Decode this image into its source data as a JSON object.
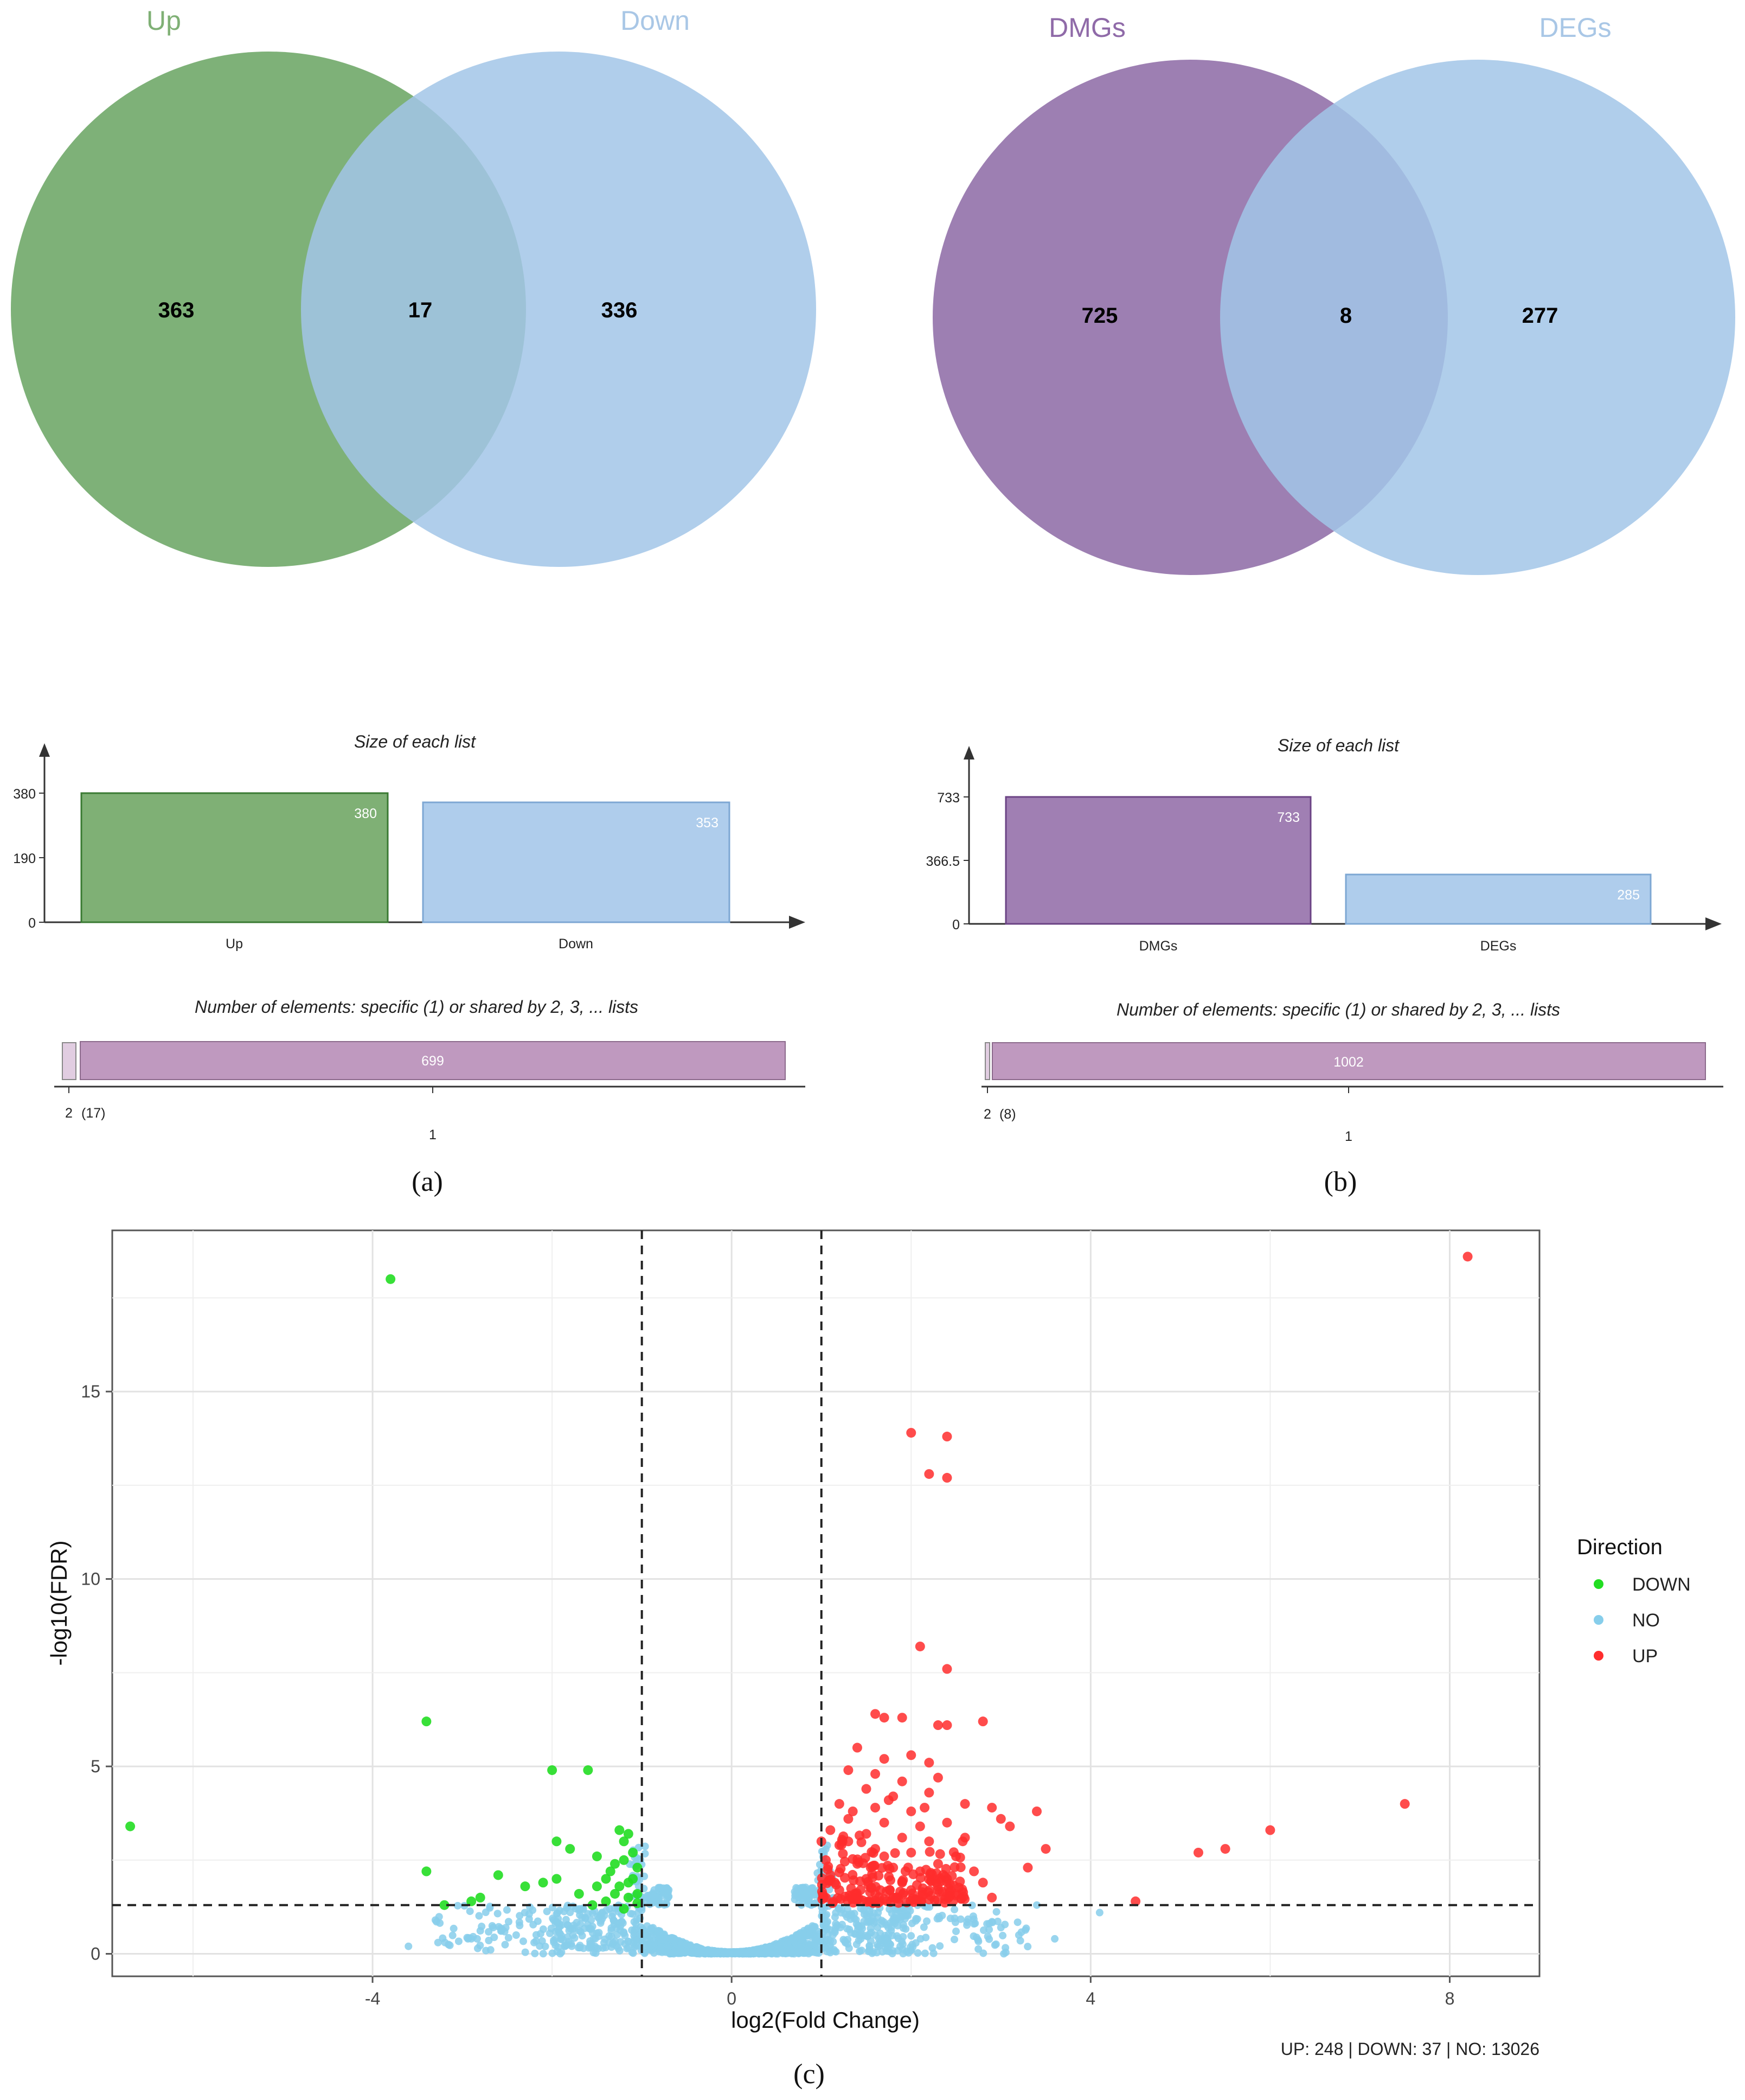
{
  "panel_a": {
    "caption": "(a)",
    "venn": {
      "set1": "Up",
      "set2": "Down",
      "only1": "363",
      "both": "17",
      "only2": "336"
    },
    "bar_title": "Size of each list",
    "bars": [
      {
        "label": "Up",
        "value": 380,
        "text": "380"
      },
      {
        "label": "Down",
        "value": 353,
        "text": "353"
      }
    ],
    "yticks": [
      "0",
      "190",
      "380"
    ],
    "yvals": [
      0,
      190,
      380
    ],
    "shared_title": "Number of elements: specific (1) or shared by 2, 3, ... lists",
    "shared_main_value": "699",
    "shared_small_label": "2",
    "shared_small_count": "(17)",
    "shared_main_label": "1"
  },
  "panel_b": {
    "caption": "(b)",
    "venn": {
      "set1": "DMGs",
      "set2": "DEGs",
      "only1": "725",
      "both": "8",
      "only2": "277"
    },
    "bar_title": "Size of each list",
    "bars": [
      {
        "label": "DMGs",
        "value": 733,
        "text": "733"
      },
      {
        "label": "DEGs",
        "value": 285,
        "text": "285"
      }
    ],
    "yticks": [
      "0",
      "366.5",
      "733"
    ],
    "yvals": [
      0,
      366.5,
      733
    ],
    "shared_title": "Number of elements: specific (1) or shared by 2, 3, ... lists",
    "shared_main_value": "1002",
    "shared_small_label": "2",
    "shared_small_count": "(8)",
    "shared_main_label": "1"
  },
  "colors": {
    "venn_green": "#5a9b52",
    "venn_blue": "#a2c5e8",
    "venn_purple": "#855f9f",
    "bar_green": "#7fb075",
    "bar_blue": "#afcdec",
    "bar_purple": "#a07fb3",
    "shared_bar": "#bf99bf",
    "down": "#22dd22",
    "no": "#87ceeb",
    "up": "#ff2d2d"
  },
  "chart_data": {
    "type": "scatter",
    "caption": "(c)",
    "xlabel": "log2(Fold Change)",
    "ylabel": "-log10(FDR)",
    "xlim": [
      -6.9,
      9.0
    ],
    "ylim": [
      -0.6,
      19.3
    ],
    "xticks": [
      -4,
      0,
      4,
      8
    ],
    "yticks": [
      0,
      5,
      10,
      15
    ],
    "vlines": [
      -1,
      1
    ],
    "hline": 1.3,
    "legend_title": "Direction",
    "legend": [
      "DOWN",
      "NO",
      "UP"
    ],
    "summary": "UP: 248 | DOWN: 37 | NO: 13026",
    "series": [
      {
        "name": "DOWN",
        "points": [
          [
            -6.7,
            3.4
          ],
          [
            -3.8,
            18.0
          ],
          [
            -3.4,
            6.2
          ],
          [
            -3.4,
            2.2
          ],
          [
            -3.2,
            1.3
          ],
          [
            -2.9,
            1.4
          ],
          [
            -2.8,
            1.5
          ],
          [
            -2.6,
            2.1
          ],
          [
            -2.3,
            1.8
          ],
          [
            -2.1,
            1.9
          ],
          [
            -2.0,
            4.9
          ],
          [
            -1.95,
            3.0
          ],
          [
            -1.95,
            2.0
          ],
          [
            -1.8,
            2.8
          ],
          [
            -1.7,
            1.6
          ],
          [
            -1.6,
            4.9
          ],
          [
            -1.55,
            1.3
          ],
          [
            -1.5,
            1.8
          ],
          [
            -1.4,
            1.4
          ],
          [
            -1.35,
            2.2
          ],
          [
            -1.3,
            2.4
          ],
          [
            -1.25,
            3.3
          ],
          [
            -1.2,
            3.0
          ],
          [
            -1.2,
            2.5
          ],
          [
            -1.15,
            1.9
          ],
          [
            -1.15,
            1.5
          ],
          [
            -1.1,
            2.7
          ],
          [
            -1.1,
            2.0
          ],
          [
            -1.05,
            1.6
          ],
          [
            -1.05,
            2.3
          ],
          [
            -1.3,
            1.6
          ],
          [
            -1.2,
            1.2
          ],
          [
            -1.4,
            2.0
          ],
          [
            -1.5,
            2.6
          ],
          [
            -1.25,
            1.8
          ],
          [
            -1.15,
            3.2
          ],
          [
            -1.05,
            1.35
          ]
        ]
      },
      {
        "name": "UP",
        "points": [
          [
            8.2,
            18.6
          ],
          [
            2.0,
            13.9
          ],
          [
            2.4,
            13.8
          ],
          [
            2.2,
            12.8
          ],
          [
            2.4,
            12.7
          ],
          [
            2.1,
            8.2
          ],
          [
            2.4,
            7.6
          ],
          [
            1.6,
            6.4
          ],
          [
            1.7,
            6.3
          ],
          [
            1.9,
            6.3
          ],
          [
            2.3,
            6.1
          ],
          [
            2.4,
            6.1
          ],
          [
            2.8,
            6.2
          ],
          [
            1.4,
            5.5
          ],
          [
            1.7,
            5.2
          ],
          [
            2.0,
            5.3
          ],
          [
            2.2,
            5.1
          ],
          [
            1.3,
            4.9
          ],
          [
            1.6,
            4.8
          ],
          [
            1.9,
            4.6
          ],
          [
            2.3,
            4.7
          ],
          [
            1.5,
            4.4
          ],
          [
            1.8,
            4.2
          ],
          [
            2.2,
            4.3
          ],
          [
            2.6,
            4.0
          ],
          [
            2.9,
            3.9
          ],
          [
            3.4,
            3.8
          ],
          [
            1.2,
            4.0
          ],
          [
            1.6,
            3.9
          ],
          [
            2.0,
            3.8
          ],
          [
            1.3,
            3.6
          ],
          [
            1.7,
            3.5
          ],
          [
            2.1,
            3.4
          ],
          [
            2.4,
            3.5
          ],
          [
            3.0,
            3.6
          ],
          [
            3.1,
            3.4
          ],
          [
            1.1,
            3.3
          ],
          [
            1.5,
            3.2
          ],
          [
            1.9,
            3.1
          ],
          [
            2.2,
            3.0
          ],
          [
            3.5,
            2.8
          ],
          [
            1.2,
            2.9
          ],
          [
            1.6,
            2.8
          ],
          [
            2.0,
            2.7
          ],
          [
            2.5,
            2.6
          ],
          [
            7.5,
            4.0
          ],
          [
            6.0,
            3.3
          ],
          [
            5.5,
            2.8
          ],
          [
            5.2,
            2.7
          ],
          [
            4.5,
            1.4
          ],
          [
            1.05,
            2.5
          ],
          [
            1.4,
            2.4
          ],
          [
            1.8,
            2.3
          ],
          [
            2.3,
            2.4
          ],
          [
            2.7,
            2.2
          ],
          [
            3.3,
            2.3
          ],
          [
            1.1,
            2.1
          ],
          [
            1.5,
            2.0
          ],
          [
            1.9,
            1.9
          ],
          [
            2.4,
            2.0
          ],
          [
            2.8,
            1.9
          ],
          [
            1.2,
            1.7
          ],
          [
            1.6,
            1.6
          ],
          [
            2.0,
            1.7
          ],
          [
            2.5,
            1.6
          ],
          [
            1.05,
            1.5
          ],
          [
            1.4,
            1.45
          ],
          [
            1.8,
            1.5
          ],
          [
            2.2,
            1.45
          ],
          [
            2.9,
            1.5
          ],
          [
            1.3,
            3.0
          ],
          [
            1.7,
            2.6
          ],
          [
            2.1,
            2.2
          ],
          [
            1.15,
            1.9
          ],
          [
            1.55,
            2.3
          ],
          [
            1.0,
            3.0
          ],
          [
            1.35,
            3.8
          ],
          [
            1.75,
            4.1
          ],
          [
            2.15,
            3.9
          ],
          [
            2.6,
            3.1
          ]
        ]
      }
    ]
  }
}
